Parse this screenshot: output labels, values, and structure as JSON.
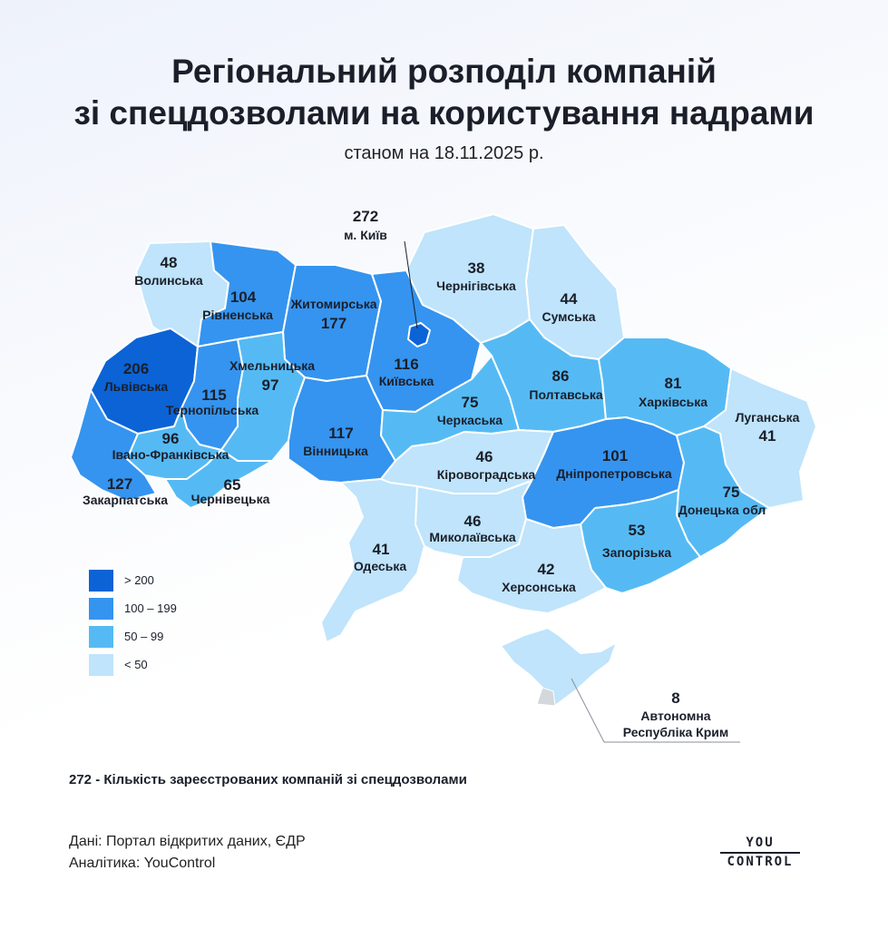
{
  "title_line1": "Регіональний розподіл компаній",
  "title_line2": "зі спецдозволами на користування надрами",
  "subtitle": "станом на 18.11.2025 р.",
  "colors": {
    "gt200": "#0b63d6",
    "r100_199": "#3594ef",
    "r50_99": "#55baf4",
    "lt50": "#bfe4fb",
    "occupied_grey": "#d4d7dc"
  },
  "regions": [
    {
      "id": "volyn",
      "name": "Волинська",
      "value": 48
    },
    {
      "id": "rivne",
      "name": "Рівненська",
      "value": 104
    },
    {
      "id": "zhytomyr",
      "name": "Житомирська",
      "value": 177
    },
    {
      "id": "kyiv_obl",
      "name": "Київська",
      "value": 116
    },
    {
      "id": "kyiv_city",
      "name": "м. Київ",
      "value": 272
    },
    {
      "id": "chernihiv",
      "name": "Чернігівська",
      "value": 38
    },
    {
      "id": "sumy",
      "name": "Сумська",
      "value": 44
    },
    {
      "id": "lviv",
      "name": "Львівська",
      "value": 206
    },
    {
      "id": "ternopil",
      "name": "Тернопільська",
      "value": 115
    },
    {
      "id": "khmelnytskyi",
      "name": "Хмельницька",
      "value": 97
    },
    {
      "id": "vinnytsia",
      "name": "Вінницька",
      "value": 117
    },
    {
      "id": "cherkasy",
      "name": "Черкаська",
      "value": 75
    },
    {
      "id": "poltava",
      "name": "Полтавська",
      "value": 86
    },
    {
      "id": "kharkiv",
      "name": "Харківська",
      "value": 81
    },
    {
      "id": "luhansk",
      "name": "Луганська",
      "value": 41
    },
    {
      "id": "ivano_frankivsk",
      "name": "Івано-Франківська",
      "value": 96
    },
    {
      "id": "zakarpattia",
      "name": "Закарпатська",
      "value": 127
    },
    {
      "id": "chernivtsi",
      "name": "Чернівецька",
      "value": 65
    },
    {
      "id": "kirovohrad",
      "name": "Кіровоградська",
      "value": 46
    },
    {
      "id": "dnipro",
      "name": "Дніпропетровська",
      "value": 101
    },
    {
      "id": "donetsk",
      "name": "Донецька обл",
      "value": 75
    },
    {
      "id": "odesa",
      "name": "Одеська",
      "value": 41
    },
    {
      "id": "mykolaiv",
      "name": "Миколаївська",
      "value": 46
    },
    {
      "id": "zaporizhzhia",
      "name": "Запорізька",
      "value": 53
    },
    {
      "id": "kherson",
      "name": "Херсонська",
      "value": 42
    },
    {
      "id": "crimea",
      "name": "Автономна Республіка Крим",
      "name_line1": "Автономна",
      "name_line2": "Республіка Крим",
      "value": 8
    }
  ],
  "legend": [
    {
      "label": "> 200",
      "color": "#0b63d6"
    },
    {
      "label": "100 – 199",
      "color": "#3594ef"
    },
    {
      "label": "50 – 99",
      "color": "#55baf4"
    },
    {
      "label": "< 50",
      "color": "#bfe4fb"
    }
  ],
  "note": "272 - Кількість зареєстрованих компаній зі спецдозволами",
  "source_line1": "Дані: Портал відкритих даних, ЄДР",
  "source_line2": "Аналітика: YouControl",
  "logo_top": "YOU",
  "logo_bottom": "CONTROL"
}
